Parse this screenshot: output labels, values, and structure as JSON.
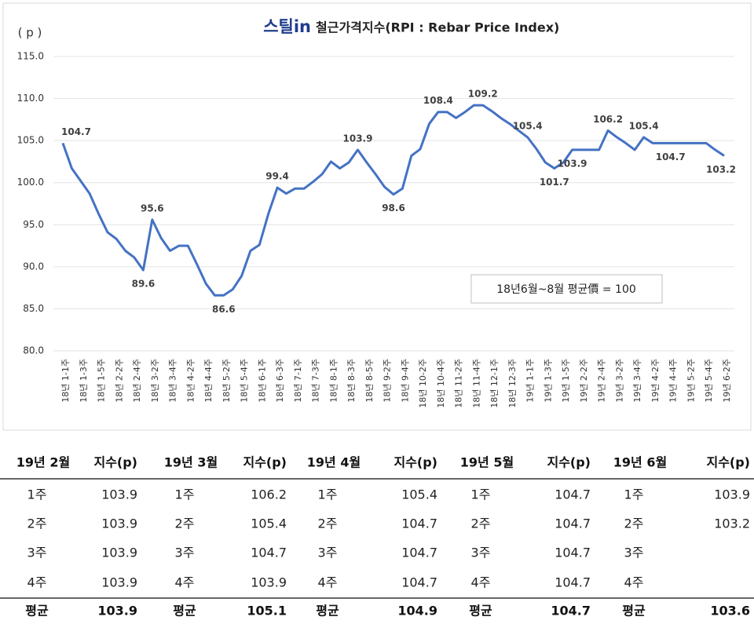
{
  "chart_data": {
    "type": "line",
    "logo": "스틸in",
    "title": "철근가격지수(RPI : Rebar Price Index)",
    "y_label": "( p )",
    "annotation": "18년6월~8월 평균價 = 100",
    "categories": [
      "18년 1-1주",
      null,
      "18년 1-3주",
      null,
      "18년 1-5주",
      null,
      "18년 2-2주",
      null,
      "18년 2-4주",
      null,
      "18년 3-2주",
      null,
      "18년 3-4주",
      null,
      "18년 4-2주",
      null,
      "18년 4-4주",
      null,
      "18년 5-2주",
      null,
      "18년 5-4주",
      null,
      "18년 6-1주",
      null,
      "18년 6-3주",
      null,
      "18년 7-1주",
      null,
      "18년 7-3주",
      null,
      "18년 8-1주",
      null,
      "18년 8-3주",
      null,
      "18년 8-5주",
      null,
      "18년 9-2주",
      null,
      "18년 9-4주",
      null,
      "18년 10-2주",
      null,
      "18년 10-4주",
      null,
      "18년 11-2주",
      null,
      "18년 11-4주",
      null,
      "18년 12-1주",
      null,
      "18년 12-3주",
      null,
      "19년 1-1주",
      null,
      "19년 1-3주",
      null,
      "19년 1-5주",
      null,
      "19년 2-2주",
      null,
      "19년 2-4주",
      null,
      "19년 3-2주",
      null,
      "19년 3-4주",
      null,
      "19년 4-2주",
      null,
      "19년 4-4주",
      null,
      "19년 5-2주",
      null,
      "19년 5-4주",
      null,
      "19년 6-2주"
    ],
    "series": [
      {
        "name": "RPI",
        "color": "#4472c4",
        "values": [
          104.7,
          101.7,
          100.2,
          98.7,
          96.3,
          94.1,
          93.3,
          91.9,
          91.1,
          89.6,
          95.6,
          93.4,
          91.9,
          92.5,
          92.5,
          90.3,
          88.0,
          86.6,
          86.6,
          87.3,
          88.9,
          91.9,
          92.6,
          96.3,
          99.4,
          98.7,
          99.3,
          99.3,
          100.1,
          101.0,
          102.5,
          101.7,
          102.4,
          103.9,
          102.4,
          101.0,
          99.5,
          98.6,
          99.3,
          103.2,
          104.0,
          107.0,
          108.4,
          108.4,
          107.7,
          108.4,
          109.2,
          109.2,
          108.5,
          107.7,
          107.0,
          106.2,
          105.4,
          104.0,
          102.4,
          101.7,
          102.4,
          103.9,
          103.9,
          103.9,
          103.9,
          106.2,
          105.4,
          104.7,
          103.9,
          105.4,
          104.7,
          104.7,
          104.7,
          104.7,
          104.7,
          104.7,
          104.7,
          103.9,
          103.2
        ],
        "value_labels": [
          "104.7",
          null,
          null,
          null,
          null,
          null,
          null,
          null,
          null,
          "89.6",
          "95.6",
          null,
          null,
          null,
          null,
          null,
          null,
          null,
          "86.6",
          null,
          null,
          null,
          null,
          null,
          "99.4",
          null,
          null,
          null,
          null,
          null,
          null,
          null,
          null,
          "103.9",
          null,
          null,
          null,
          "98.6",
          null,
          null,
          null,
          null,
          "108.4",
          null,
          null,
          null,
          null,
          "109.2",
          null,
          null,
          null,
          null,
          "105.4",
          null,
          null,
          "101.7",
          null,
          "103.9",
          null,
          null,
          null,
          "106.2",
          null,
          null,
          null,
          "105.4",
          null,
          null,
          "104.7",
          null,
          null,
          null,
          null,
          null,
          "103.2"
        ]
      }
    ],
    "ylim": [
      80,
      115
    ],
    "yticks": [
      {
        "value": 80,
        "label": "80.0"
      },
      {
        "value": 85,
        "label": "85.0"
      },
      {
        "value": 90,
        "label": "90.0"
      },
      {
        "value": 95,
        "label": "95.0"
      },
      {
        "value": 100,
        "label": "100.0"
      },
      {
        "value": 105,
        "label": "105.0"
      },
      {
        "value": 110,
        "label": "110.0"
      },
      {
        "value": 115,
        "label": "115.0"
      }
    ],
    "grid": true
  },
  "table": {
    "header": [
      "19년 2월",
      "지수(p)",
      "19년 3월",
      "지수(p)",
      "19년 4월",
      "지수(p)",
      "19년 5월",
      "지수(p)",
      "19년 6월",
      "지수(p)"
    ],
    "rows": [
      [
        "1주",
        103.9,
        "1주",
        106.2,
        "1주",
        105.4,
        "1주",
        104.7,
        "1주",
        103.9
      ],
      [
        "2주",
        103.9,
        "2주",
        105.4,
        "2주",
        104.7,
        "2주",
        104.7,
        "2주",
        103.2
      ],
      [
        "3주",
        103.9,
        "3주",
        104.7,
        "3주",
        104.7,
        "3주",
        104.7,
        "3주",
        null
      ],
      [
        "4주",
        103.9,
        "4주",
        103.9,
        "4주",
        104.7,
        "4주",
        104.7,
        "4주",
        null
      ]
    ],
    "footer": [
      "평균",
      103.9,
      "평균",
      105.1,
      "평균",
      104.9,
      "평균",
      104.7,
      "평균",
      103.6
    ]
  }
}
